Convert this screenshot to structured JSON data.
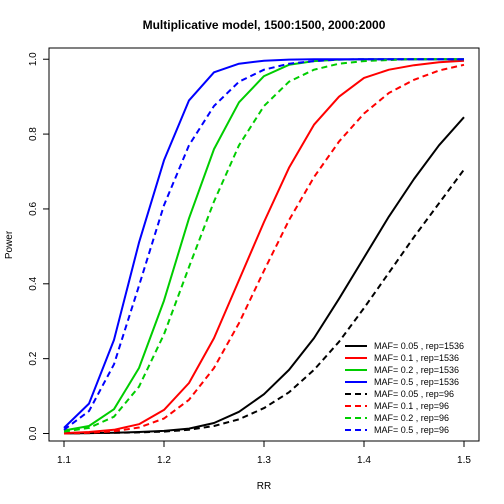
{
  "chart_data": {
    "type": "line",
    "title": "Multiplicative model, 1500:1500, 2000:2000",
    "xlabel": "RR",
    "ylabel": "Power",
    "xlim": [
      1.085,
      1.515
    ],
    "ylim": [
      -0.02,
      1.03
    ],
    "x_ticks": [
      1.1,
      1.2,
      1.3,
      1.4,
      1.5
    ],
    "x_tick_labels": [
      "1.1",
      "1.2",
      "1.3",
      "1.4",
      "1.5"
    ],
    "y_ticks": [
      0.0,
      0.2,
      0.4,
      0.6,
      0.8,
      1.0
    ],
    "y_tick_labels": [
      "0.0",
      "0.2",
      "0.4",
      "0.6",
      "0.8",
      "1.0"
    ],
    "grid": false,
    "legend_position": "bottom-right",
    "x": [
      1.1,
      1.125,
      1.15,
      1.175,
      1.2,
      1.225,
      1.25,
      1.275,
      1.3,
      1.325,
      1.35,
      1.375,
      1.4,
      1.425,
      1.45,
      1.475,
      1.5
    ],
    "series": [
      {
        "name": "MAF= 0.05 , rep=1536",
        "color": "#000000",
        "dash": "solid",
        "values": [
          0.0,
          0.001,
          0.002,
          0.004,
          0.007,
          0.013,
          0.028,
          0.058,
          0.105,
          0.17,
          0.255,
          0.36,
          0.47,
          0.58,
          0.68,
          0.77,
          0.845
        ]
      },
      {
        "name": "MAF= 0.1 , rep=1536",
        "color": "#ff0000",
        "dash": "solid",
        "values": [
          0.001,
          0.004,
          0.01,
          0.025,
          0.063,
          0.135,
          0.255,
          0.41,
          0.565,
          0.71,
          0.825,
          0.9,
          0.95,
          0.972,
          0.984,
          0.992,
          0.996
        ]
      },
      {
        "name": "MAF= 0.2 , rep=1536",
        "color": "#00cd00",
        "dash": "solid",
        "values": [
          0.008,
          0.02,
          0.065,
          0.175,
          0.355,
          0.575,
          0.76,
          0.885,
          0.955,
          0.985,
          0.995,
          0.999,
          1.0,
          1.0,
          1.0,
          1.0,
          1.0
        ]
      },
      {
        "name": "MAF= 0.5 , rep=1536",
        "color": "#0000ff",
        "dash": "solid",
        "values": [
          0.015,
          0.08,
          0.25,
          0.51,
          0.73,
          0.89,
          0.965,
          0.988,
          0.996,
          0.999,
          1.0,
          1.0,
          1.0,
          1.0,
          1.0,
          1.0,
          1.0
        ]
      },
      {
        "name": "MAF= 0.05 , rep=96",
        "color": "#000000",
        "dash": "dashed",
        "values": [
          0.0,
          0.001,
          0.002,
          0.003,
          0.005,
          0.01,
          0.02,
          0.038,
          0.068,
          0.11,
          0.17,
          0.245,
          0.335,
          0.43,
          0.525,
          0.615,
          0.705
        ]
      },
      {
        "name": "MAF= 0.1 , rep=96",
        "color": "#ff0000",
        "dash": "dashed",
        "values": [
          0.0,
          0.002,
          0.006,
          0.016,
          0.04,
          0.09,
          0.175,
          0.295,
          0.435,
          0.57,
          0.685,
          0.78,
          0.855,
          0.91,
          0.945,
          0.97,
          0.985
        ]
      },
      {
        "name": "MAF= 0.2 , rep=96",
        "color": "#00cd00",
        "dash": "dashed",
        "values": [
          0.005,
          0.015,
          0.045,
          0.125,
          0.265,
          0.445,
          0.62,
          0.77,
          0.875,
          0.94,
          0.972,
          0.988,
          0.995,
          0.998,
          1.0,
          1.0,
          1.0
        ]
      },
      {
        "name": "MAF= 0.5 , rep=96",
        "color": "#0000ff",
        "dash": "dashed",
        "values": [
          0.01,
          0.06,
          0.185,
          0.395,
          0.61,
          0.77,
          0.875,
          0.94,
          0.972,
          0.988,
          0.995,
          0.999,
          1.0,
          1.0,
          1.0,
          1.0,
          1.0
        ]
      }
    ]
  }
}
